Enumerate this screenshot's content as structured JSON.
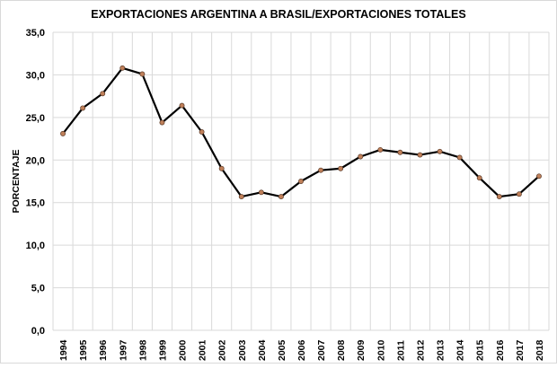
{
  "chart_data": {
    "type": "line",
    "title": "EXPORTACIONES ARGENTINA  A BRASIL/EXPORTACIONES  TOTALES",
    "xlabel": "",
    "ylabel": "PORCENTAJE",
    "ylim": [
      0,
      35
    ],
    "yticks": [
      "0,0",
      "5,0",
      "10,0",
      "15,0",
      "20,0",
      "25,0",
      "30,0",
      "35,0"
    ],
    "grid": true,
    "categories": [
      "1994",
      "1995",
      "1996",
      "1997",
      "1998",
      "1999",
      "2000",
      "2001",
      "2002",
      "2003",
      "2004",
      "2005",
      "2006",
      "2007",
      "2008",
      "2009",
      "2010",
      "2011",
      "2012",
      "2013",
      "2014",
      "2015",
      "2016",
      "2017",
      "2018"
    ],
    "values": [
      23.1,
      26.1,
      27.8,
      30.8,
      30.1,
      24.4,
      26.4,
      23.3,
      19.0,
      15.7,
      16.2,
      15.7,
      17.5,
      18.8,
      19.0,
      20.4,
      21.2,
      20.9,
      20.6,
      21.0,
      20.3,
      17.9,
      15.7,
      16.0,
      18.1
    ],
    "line_color": "#000000",
    "marker_color": "#c0805a"
  }
}
